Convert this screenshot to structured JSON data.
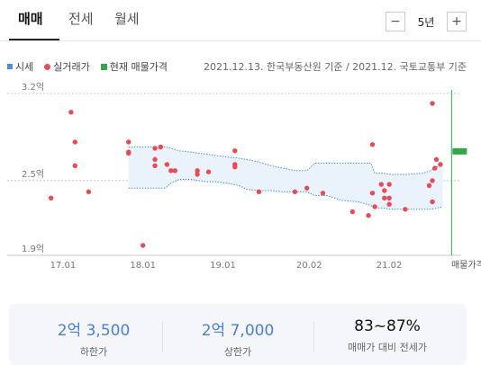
{
  "tabs": [
    {
      "label": "매매",
      "active": true
    },
    {
      "label": "전세",
      "active": false
    },
    {
      "label": "월세",
      "active": false
    }
  ],
  "period": {
    "minus": "−",
    "label": "5년",
    "plus": "+"
  },
  "legend": {
    "items": [
      {
        "label": "시세",
        "icon": "line-marker-icon"
      },
      {
        "label": "실거래가",
        "icon": "dot-marker-icon"
      },
      {
        "label": "현재 매물가격",
        "icon": "square-marker-icon"
      }
    ],
    "source": "2021.12.13. 한국부동산원 기준 / 2021.12. 국토교통부 기준"
  },
  "colors": {
    "accent": "#4a7fd6",
    "band": "#4a90d9",
    "dot": "#e84b55",
    "listing": "#2fa84a"
  },
  "chart_data": {
    "type": "scatter",
    "y_tick_labels": [
      "3.2억",
      "2.5억",
      "1.9억"
    ],
    "y_ticks": [
      3.2,
      2.5,
      1.9
    ],
    "ylim": [
      1.9,
      3.2
    ],
    "x_tick_labels": [
      "17.01",
      "18.01",
      "19.01",
      "20.02",
      "21.02",
      "매물가격"
    ],
    "x_ticks": [
      2017.0,
      2018.0,
      2019.0,
      2020.08,
      2021.08
    ],
    "xlim": [
      2016.82,
      2021.98
    ],
    "listing_x": 2021.86,
    "listing_range": [
      2.71,
      2.76
    ],
    "series": [
      {
        "name": "시세",
        "type": "band",
        "x": [
          2017.82,
          2018.1,
          2018.28,
          2018.35,
          2018.45,
          2018.6,
          2018.7,
          2018.82,
          2018.92,
          2019.05,
          2019.2,
          2019.3,
          2019.45,
          2019.6,
          2019.75,
          2019.9,
          2020.05,
          2020.15,
          2020.3,
          2020.5,
          2020.7,
          2020.85,
          2020.9,
          2021.0,
          2021.1,
          2021.3,
          2021.5,
          2021.6,
          2021.75
        ],
        "upper": [
          2.77,
          2.77,
          2.77,
          2.76,
          2.74,
          2.73,
          2.72,
          2.71,
          2.7,
          2.69,
          2.68,
          2.67,
          2.65,
          2.62,
          2.6,
          2.58,
          2.58,
          2.64,
          2.64,
          2.64,
          2.64,
          2.64,
          2.56,
          2.56,
          2.55,
          2.55,
          2.56,
          2.58,
          2.64
        ],
        "lower": [
          2.44,
          2.44,
          2.44,
          2.48,
          2.51,
          2.51,
          2.5,
          2.49,
          2.49,
          2.48,
          2.46,
          2.43,
          2.42,
          2.42,
          2.41,
          2.41,
          2.41,
          2.38,
          2.38,
          2.34,
          2.33,
          2.3,
          2.28,
          2.28,
          2.27,
          2.27,
          2.27,
          2.27,
          2.29
        ]
      },
      {
        "name": "실거래가",
        "type": "scatter",
        "x": [
          2016.85,
          2017.1,
          2017.15,
          2017.15,
          2017.32,
          2017.82,
          2017.82,
          2017.82,
          2018.0,
          2018.15,
          2018.15,
          2018.15,
          2018.22,
          2018.22,
          2018.3,
          2018.35,
          2018.4,
          2018.68,
          2018.68,
          2018.82,
          2019.15,
          2019.15,
          2019.15,
          2019.45,
          2019.9,
          2020.05,
          2020.25,
          2020.62,
          2020.82,
          2020.87,
          2020.87,
          2020.9,
          2020.98,
          2021.02,
          2021.02,
          2021.08,
          2021.08,
          2021.08,
          2021.28,
          2021.58,
          2021.62,
          2021.62,
          2021.62,
          2021.65,
          2021.67,
          2021.72
        ],
        "y": [
          2.36,
          3.05,
          2.81,
          2.62,
          2.41,
          2.81,
          2.73,
          2.72,
          1.98,
          2.76,
          2.67,
          2.62,
          2.77,
          2.77,
          2.63,
          2.58,
          2.58,
          2.58,
          2.55,
          2.57,
          2.74,
          2.63,
          2.61,
          2.41,
          2.41,
          2.44,
          2.4,
          2.25,
          2.22,
          2.79,
          2.4,
          2.29,
          2.47,
          2.42,
          2.36,
          2.47,
          2.36,
          2.31,
          2.27,
          2.46,
          2.5,
          2.33,
          3.12,
          2.6,
          2.67,
          2.63
        ]
      }
    ]
  },
  "summary": [
    {
      "value": "2억 3,500",
      "label": "하한가",
      "style": "accent"
    },
    {
      "value": "2억 7,000",
      "label": "상한가",
      "style": "accent"
    },
    {
      "value": "83~87%",
      "label": "매매가 대비 전세가",
      "style": "plain"
    }
  ]
}
